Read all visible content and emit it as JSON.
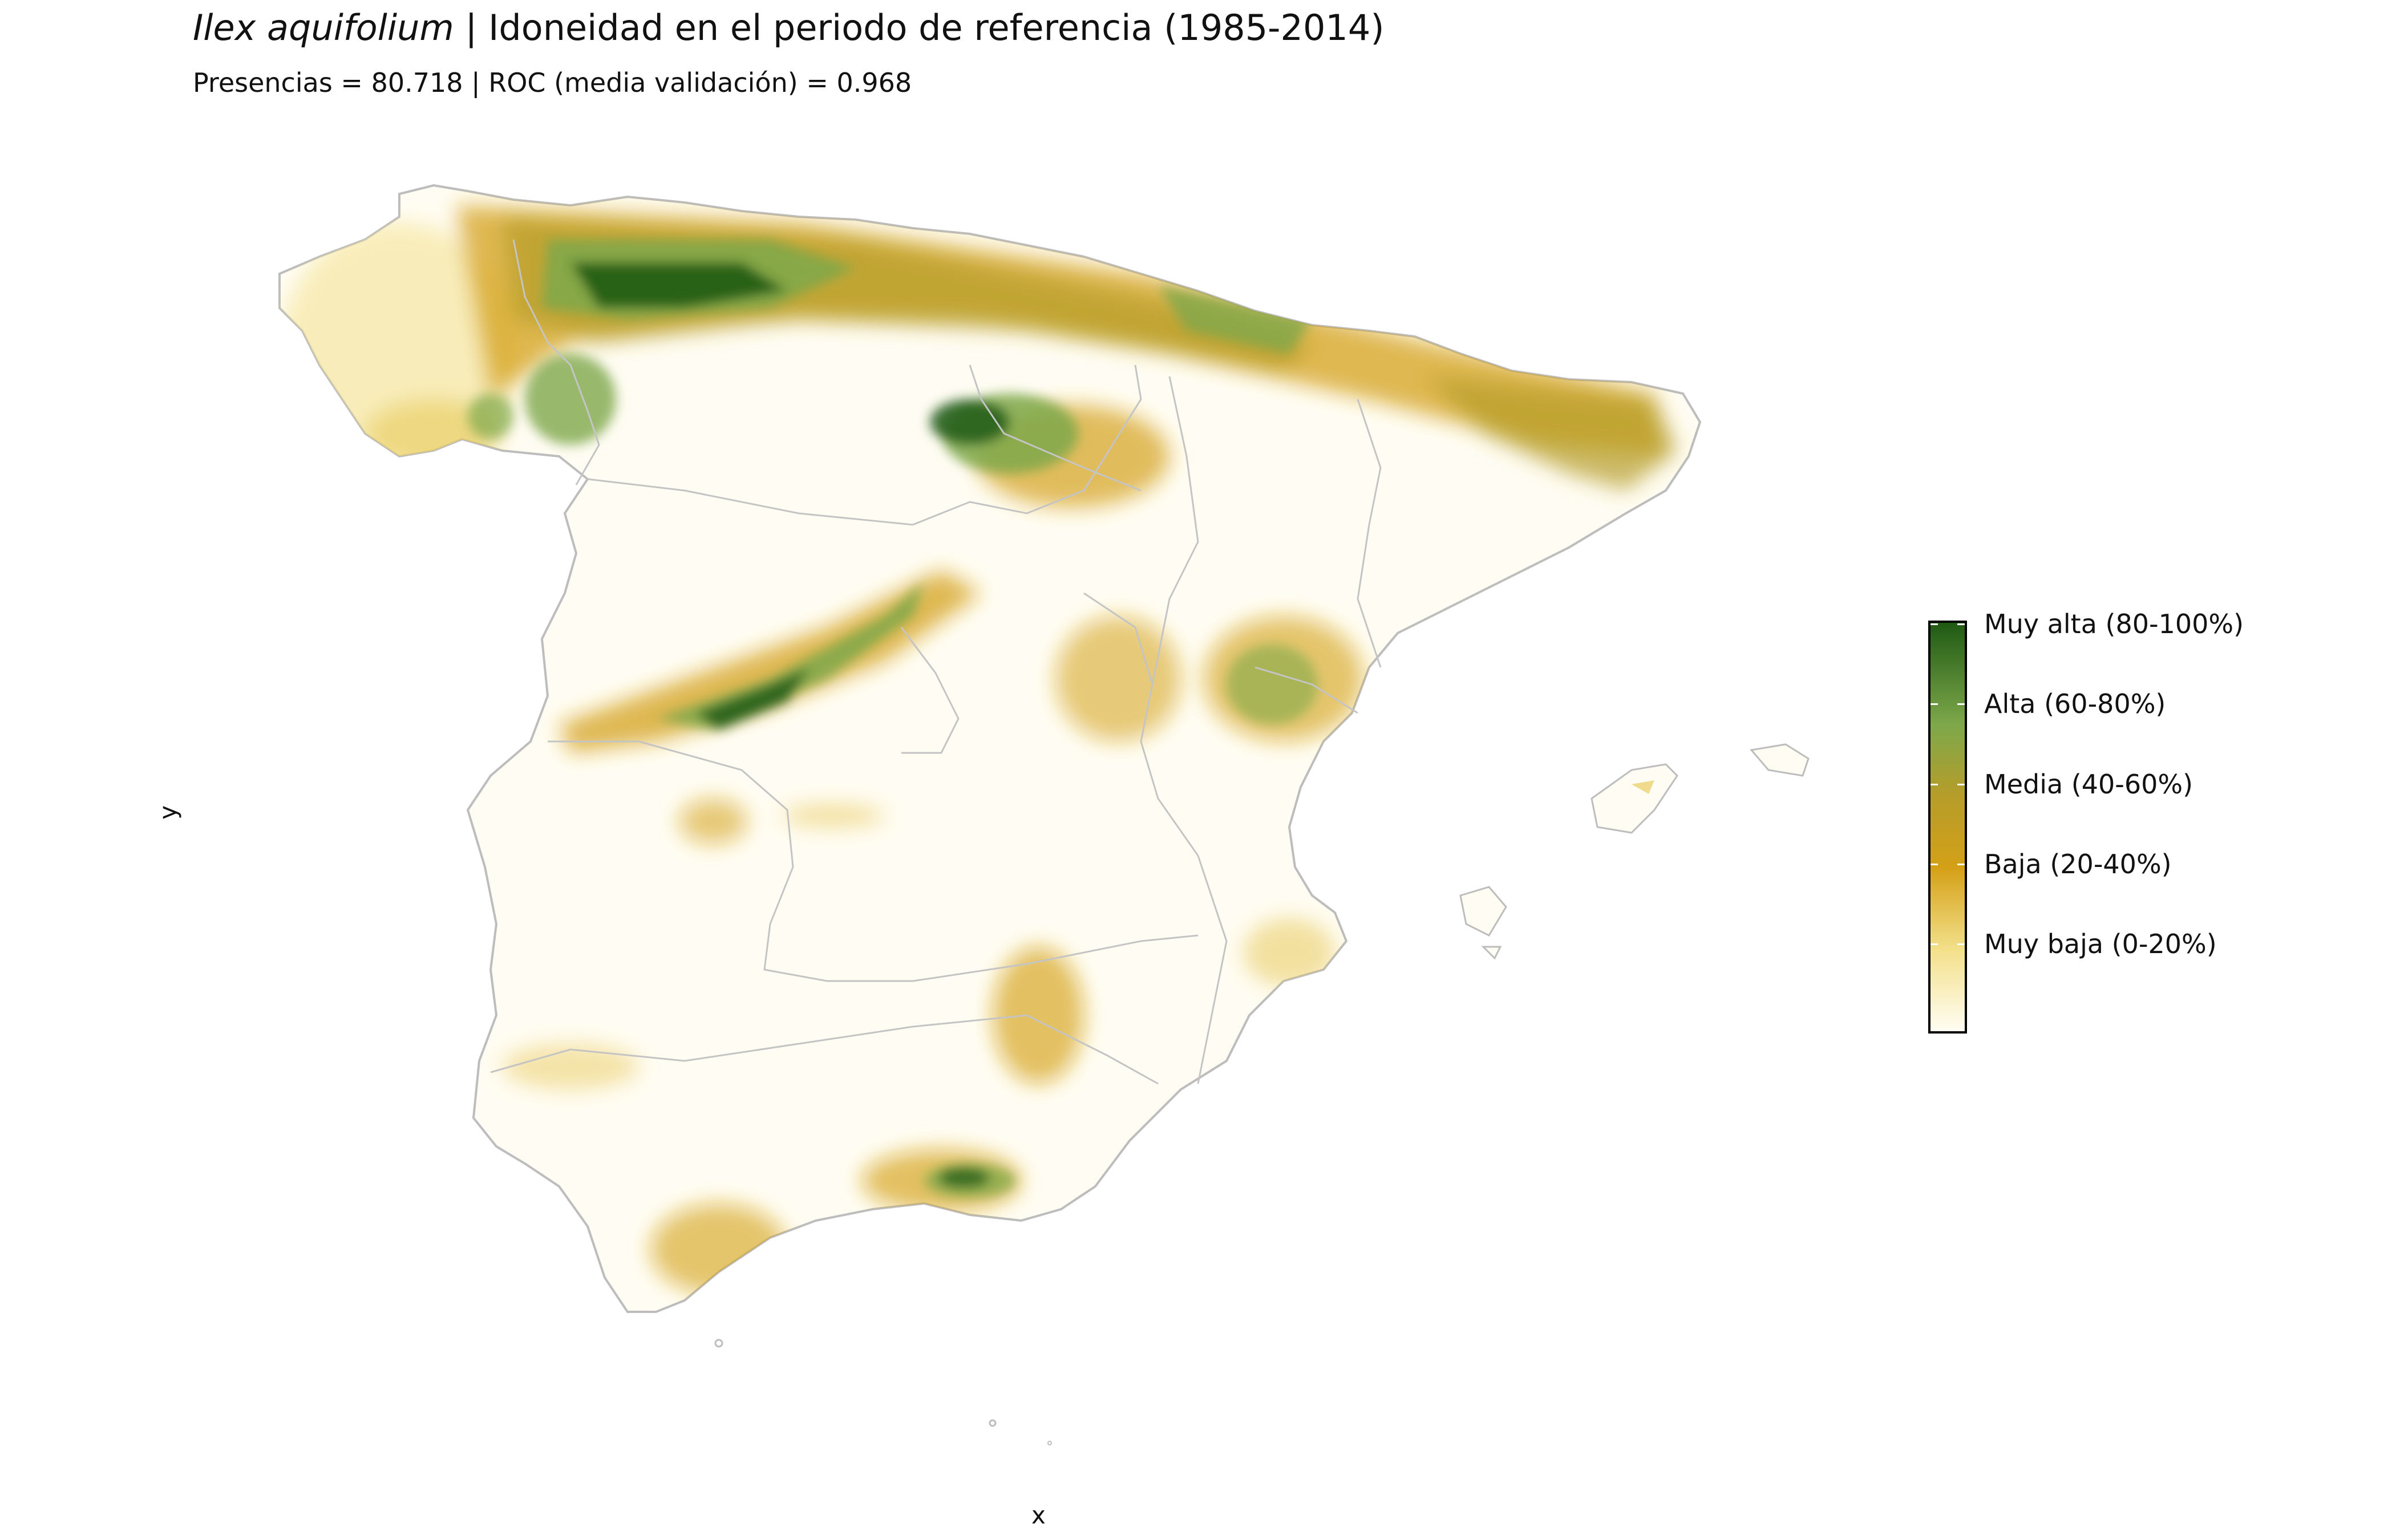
{
  "map": {
    "title_species": "Ilex aquifolium",
    "title_rest": " | Idoneidad en el periodo de referencia (1985-2014)",
    "subtitle": "Presencias = 80.718  |  ROC (media validación) = 0.968",
    "xlabel": "x",
    "ylabel": "y"
  },
  "legend": {
    "labels": [
      "Muy alta (80-100%)",
      "Alta (60-80%)",
      "Media (40-60%)",
      "Baja (20-40%)",
      "Muy baja (0-20%)"
    ],
    "colors": {
      "muy_alta": "#1f5a14",
      "alta": "#7ea84a",
      "media": "#b59d2a",
      "baja": "#d4a017",
      "muy_baja": "#f3e08a",
      "nula": "#fffdf3"
    }
  },
  "colors": {
    "outline": "#bdbdbd",
    "background": "#ffffff"
  }
}
